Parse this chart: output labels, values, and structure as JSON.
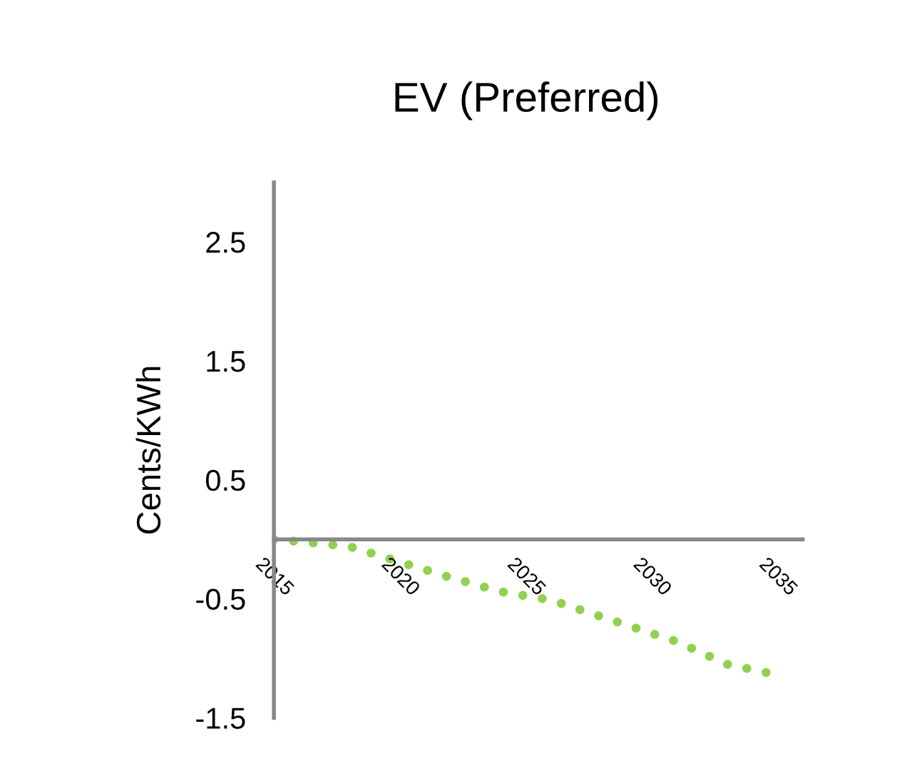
{
  "chart_data": {
    "type": "line",
    "title": "EV (Preferred)",
    "ylabel": "Cents/KWh",
    "x": [
      2015,
      2018,
      2020,
      2022,
      2024,
      2026,
      2028,
      2031,
      2033,
      2035
    ],
    "series": [
      {
        "color": "#92d050",
        "values": [
          0.0,
          -0.06,
          -0.19,
          -0.32,
          -0.44,
          -0.51,
          -0.65,
          -0.86,
          -1.05,
          -1.14
        ]
      }
    ],
    "line_style": "dotted",
    "xlim": [
      2015,
      2036
    ],
    "xticks": [
      2015,
      2020,
      2025,
      2030,
      2035
    ],
    "ylim": [
      -1.5,
      3
    ],
    "yticks": [
      -1.5,
      -0.5,
      0.5,
      1.5,
      2.5
    ],
    "grid": false,
    "legend": false
  }
}
